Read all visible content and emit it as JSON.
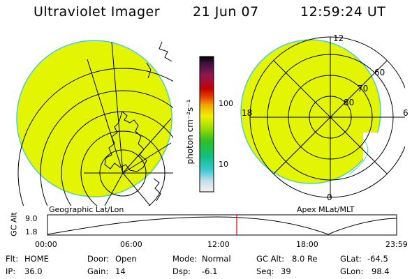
{
  "header": {
    "title": "Ultraviolet Imager",
    "date": "21 Jun 07",
    "time": "12:59:24 UT"
  },
  "left_map": {
    "caption": "Geographic Lat/Lon"
  },
  "right_map": {
    "caption": "Apex MLat/MLT",
    "mlt_labels": [
      "12",
      "6",
      "0",
      "18"
    ],
    "lat_labels": [
      "60",
      "70",
      "80"
    ]
  },
  "colorbar": {
    "label": "photon cm⁻²s⁻¹",
    "ticks": [
      "100",
      "10"
    ]
  },
  "orbit_plot": {
    "ylabel": "GC Alt",
    "yticks": [
      "9.0",
      "1.8"
    ],
    "xticks": [
      "00:00",
      "06:00",
      "12:00",
      "18:00",
      "23:59"
    ]
  },
  "status": {
    "flt_label": "Flt:",
    "flt_value": "HOME",
    "ip_label": "IP:",
    "ip_value": "36.0",
    "door_label": "Door:",
    "door_value": "Open",
    "gain_label": "Gain:",
    "gain_value": "14",
    "mode_label": "Mode:",
    "mode_value": "Normal",
    "dsp_label": "Dsp:",
    "dsp_value": "-6.1",
    "gcalt_label": "GC Alt:",
    "gcalt_value": "8.0 Re",
    "seq_label": "Seq:",
    "seq_value": "39",
    "glat_label": "GLat:",
    "glat_value": "-64.5",
    "glon_label": "GLon:",
    "glon_value": "98.4"
  },
  "colors": {
    "image_fill": "#e3f500",
    "image_edge": "#50d0c0",
    "cursor": "#e00000"
  }
}
